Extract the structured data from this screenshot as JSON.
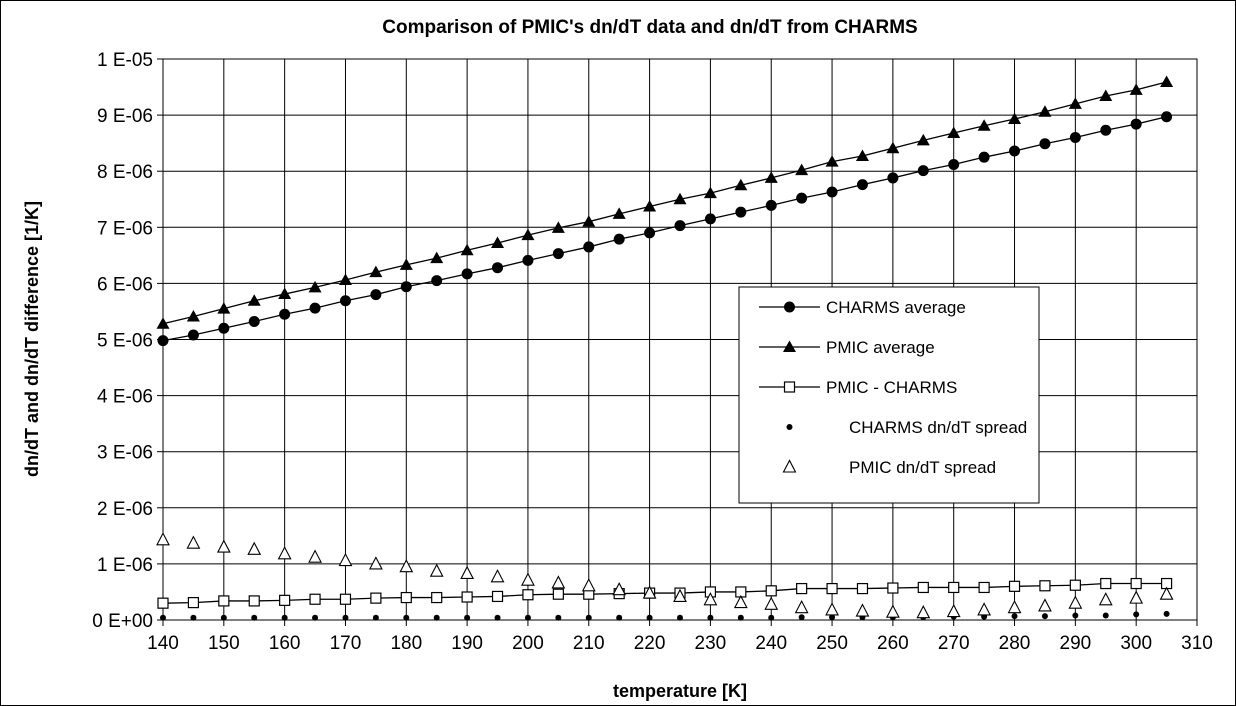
{
  "chart_data": {
    "type": "line",
    "title": "Comparison of PMIC's dn/dT data and dn/dT from CHARMS",
    "xlabel": "temperature [K]",
    "ylabel": "dn/dT and dn/dT difference [1/K]",
    "xlim": [
      140,
      310
    ],
    "ylim": [
      0,
      1e-05
    ],
    "x_ticks": [
      "140",
      "150",
      "160",
      "170",
      "180",
      "190",
      "200",
      "210",
      "220",
      "230",
      "240",
      "250",
      "260",
      "270",
      "280",
      "290",
      "300",
      "310"
    ],
    "y_ticks": [
      "0 E+00",
      "1 E-06",
      "2 E-06",
      "3 E-06",
      "4 E-06",
      "5 E-06",
      "6 E-06",
      "7 E-06",
      "8 E-06",
      "9 E-06",
      "1 E-05"
    ],
    "grid": true,
    "legend_position": "center-right",
    "x": [
      140,
      145,
      150,
      155,
      160,
      165,
      170,
      175,
      180,
      185,
      190,
      195,
      200,
      205,
      210,
      215,
      220,
      225,
      230,
      235,
      240,
      245,
      250,
      255,
      260,
      265,
      270,
      275,
      280,
      285,
      290,
      295,
      300,
      305
    ],
    "series": [
      {
        "name": "CHARMS average",
        "marker": "filled-circle",
        "line": true,
        "values": [
          4.98e-06,
          5.08e-06,
          5.2e-06,
          5.32e-06,
          5.45e-06,
          5.56e-06,
          5.69e-06,
          5.8e-06,
          5.94e-06,
          6.05e-06,
          6.17e-06,
          6.28e-06,
          6.41e-06,
          6.53e-06,
          6.65e-06,
          6.79e-06,
          6.9e-06,
          7.03e-06,
          7.15e-06,
          7.27e-06,
          7.39e-06,
          7.52e-06,
          7.63e-06,
          7.76e-06,
          7.88e-06,
          8.01e-06,
          8.12e-06,
          8.25e-06,
          8.36e-06,
          8.49e-06,
          8.6e-06,
          8.73e-06,
          8.84e-06,
          8.97e-06
        ]
      },
      {
        "name": "PMIC average",
        "marker": "filled-triangle",
        "line": true,
        "values": [
          5.28e-06,
          5.41e-06,
          5.55e-06,
          5.69e-06,
          5.81e-06,
          5.93e-06,
          6.06e-06,
          6.2e-06,
          6.33e-06,
          6.45e-06,
          6.59e-06,
          6.72e-06,
          6.86e-06,
          6.99e-06,
          7.1e-06,
          7.24e-06,
          7.37e-06,
          7.5e-06,
          7.61e-06,
          7.75e-06,
          7.88e-06,
          8.02e-06,
          8.17e-06,
          8.27e-06,
          8.41e-06,
          8.55e-06,
          8.68e-06,
          8.81e-06,
          8.93e-06,
          9.06e-06,
          9.2e-06,
          9.34e-06,
          9.45e-06,
          9.59e-06
        ]
      },
      {
        "name": "PMIC - CHARMS",
        "marker": "open-square",
        "line": true,
        "values": [
          3e-07,
          3.1e-07,
          3.4e-07,
          3.4e-07,
          3.5e-07,
          3.7e-07,
          3.7e-07,
          3.9e-07,
          4e-07,
          4e-07,
          4.1e-07,
          4.2e-07,
          4.5e-07,
          4.6e-07,
          4.6e-07,
          4.7e-07,
          4.8e-07,
          4.8e-07,
          5e-07,
          5e-07,
          5.2e-07,
          5.6e-07,
          5.6e-07,
          5.6e-07,
          5.7e-07,
          5.8e-07,
          5.8e-07,
          5.8e-07,
          6e-07,
          6.1e-07,
          6.2e-07,
          6.5e-07,
          6.5e-07,
          6.5e-07
        ]
      },
      {
        "name": "CHARMS dn/dT spread",
        "marker": "small-dot",
        "line": false,
        "values": [
          4e-08,
          4e-08,
          4e-08,
          4e-08,
          4e-08,
          4e-08,
          4e-08,
          4e-08,
          4e-08,
          4e-08,
          4e-08,
          4e-08,
          4e-08,
          4e-08,
          4e-08,
          4e-08,
          4e-08,
          4e-08,
          4e-08,
          4e-08,
          4e-08,
          5e-08,
          5e-08,
          5e-08,
          5e-08,
          5e-08,
          6e-08,
          6e-08,
          7e-08,
          7e-08,
          8e-08,
          8e-08,
          1e-07,
          1.1e-07
        ]
      },
      {
        "name": "PMIC dn/dT spread",
        "marker": "open-triangle",
        "line": false,
        "values": [
          1.43e-06,
          1.37e-06,
          1.3e-06,
          1.26e-06,
          1.18e-06,
          1.12e-06,
          1.06e-06,
          1e-06,
          9.5e-07,
          8.7e-07,
          8.3e-07,
          7.7e-07,
          7.1e-07,
          6.6e-07,
          6.1e-07,
          5.4e-07,
          4.8e-07,
          4.2e-07,
          3.6e-07,
          3.1e-07,
          2.8e-07,
          2.2e-07,
          1.8e-07,
          1.6e-07,
          1.4e-07,
          1.3e-07,
          1.5e-07,
          1.8e-07,
          2.2e-07,
          2.5e-07,
          3e-07,
          3.6e-07,
          3.9e-07,
          4.6e-07
        ]
      }
    ]
  }
}
